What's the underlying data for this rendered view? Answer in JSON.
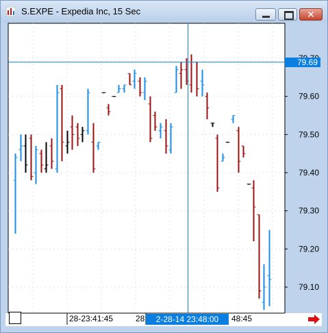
{
  "window": {
    "title": "S.EXPE - Expedia Inc, 15 Sec",
    "app_icon": "bar-chart-icon",
    "buttons": {
      "minimize": "minimize-icon",
      "maximize": "maximize-icon",
      "close": "close-icon"
    },
    "close_glyph": "✕"
  },
  "chart_data": {
    "type": "ohlc",
    "title": "S.EXPE - Expedia Inc, 15 Sec",
    "y_ticks": [
      "79.70",
      "79.60",
      "79.50",
      "79.40",
      "79.30",
      "79.20",
      "79.10"
    ],
    "ylim": [
      79.03,
      79.77
    ],
    "crosshair": {
      "price_label": "79.69",
      "time_label": "2-28-14  23:48:00",
      "price": 79.69
    },
    "x_labels": [
      "28-23:41:45",
      "28",
      "48:45"
    ],
    "colors": {
      "up": "#1a8ee8",
      "down": "#9b1010",
      "flat": "#000000"
    },
    "bars": [
      {
        "open": 79.38,
        "high": 79.45,
        "low": 79.24,
        "close": 79.44,
        "dir": "up"
      },
      {
        "open": 79.46,
        "high": 79.5,
        "low": 79.43,
        "close": 79.47,
        "dir": "up"
      },
      {
        "open": 79.47,
        "high": 79.5,
        "low": 79.4,
        "close": 79.42,
        "dir": "flat"
      },
      {
        "open": 79.49,
        "high": 79.5,
        "low": 79.38,
        "close": 79.39,
        "dir": "down"
      },
      {
        "open": 79.4,
        "high": 79.47,
        "low": 79.37,
        "close": 79.46,
        "dir": "up"
      },
      {
        "open": 79.45,
        "high": 79.46,
        "low": 79.4,
        "close": 79.42,
        "dir": "down"
      },
      {
        "open": 79.41,
        "high": 79.48,
        "low": 79.4,
        "close": 79.42,
        "dir": "flat"
      },
      {
        "open": 79.47,
        "high": 79.49,
        "low": 79.41,
        "close": 79.43,
        "dir": "down"
      },
      {
        "open": 79.41,
        "high": 79.63,
        "low": 79.4,
        "close": 79.61,
        "dir": "up"
      },
      {
        "open": 79.62,
        "high": 79.63,
        "low": 79.43,
        "close": 79.48,
        "dir": "down"
      },
      {
        "open": 79.47,
        "high": 79.51,
        "low": 79.45,
        "close": 79.48,
        "dir": "flat"
      },
      {
        "open": 79.52,
        "high": 79.55,
        "low": 79.46,
        "close": 79.5,
        "dir": "down"
      },
      {
        "open": 79.52,
        "high": 79.53,
        "low": 79.47,
        "close": 79.49,
        "dir": "down"
      },
      {
        "open": 79.5,
        "high": 79.52,
        "low": 79.48,
        "close": 79.51,
        "dir": "flat"
      },
      {
        "open": 79.51,
        "high": 79.62,
        "low": 79.5,
        "close": 79.61,
        "dir": "up"
      },
      {
        "open": 79.48,
        "high": 79.53,
        "low": 79.4,
        "close": 79.41,
        "dir": "down"
      },
      {
        "open": 79.47,
        "high": 79.48,
        "low": 79.46,
        "close": 79.48,
        "dir": "up"
      },
      {
        "open": 79.61,
        "high": 79.61,
        "low": 79.61,
        "close": 79.61,
        "dir": "flat"
      },
      {
        "open": 79.57,
        "high": 79.58,
        "low": 79.55,
        "close": 79.56,
        "dir": "down"
      },
      {
        "open": 79.6,
        "high": 79.6,
        "low": 79.6,
        "close": 79.6,
        "dir": "flat"
      },
      {
        "open": 79.61,
        "high": 79.63,
        "low": 79.61,
        "close": 79.62,
        "dir": "up"
      },
      {
        "open": 79.62,
        "high": 79.63,
        "low": 79.61,
        "close": 79.63,
        "dir": "up"
      },
      {
        "open": 79.66,
        "high": 79.66,
        "low": 79.63,
        "close": 79.63,
        "dir": "down"
      },
      {
        "open": 79.64,
        "high": 79.67,
        "low": 79.62,
        "close": 79.66,
        "dir": "up"
      },
      {
        "open": 79.64,
        "high": 79.65,
        "low": 79.6,
        "close": 79.61,
        "dir": "down"
      },
      {
        "open": 79.61,
        "high": 79.65,
        "low": 79.59,
        "close": 79.64,
        "dir": "up"
      },
      {
        "open": 79.58,
        "high": 79.6,
        "low": 79.48,
        "close": 79.49,
        "dir": "down"
      },
      {
        "open": 79.55,
        "high": 79.56,
        "low": 79.51,
        "close": 79.52,
        "dir": "down"
      },
      {
        "open": 79.51,
        "high": 79.53,
        "low": 79.49,
        "close": 79.52,
        "dir": "up"
      },
      {
        "open": 79.51,
        "high": 79.54,
        "low": 79.45,
        "close": 79.47,
        "dir": "down"
      },
      {
        "open": 79.46,
        "high": 79.53,
        "low": 79.45,
        "close": 79.52,
        "dir": "up"
      },
      {
        "open": 79.61,
        "high": 79.68,
        "low": 79.61,
        "close": 79.67,
        "dir": "up"
      },
      {
        "open": 79.66,
        "high": 79.69,
        "low": 79.62,
        "close": 79.67,
        "dir": "down"
      },
      {
        "open": 79.67,
        "high": 79.7,
        "low": 79.63,
        "close": 79.64,
        "dir": "down"
      },
      {
        "open": 79.63,
        "high": 79.71,
        "low": 79.61,
        "close": 79.69,
        "dir": "down"
      },
      {
        "open": 79.69,
        "high": 79.69,
        "low": 79.6,
        "close": 79.62,
        "dir": "down"
      },
      {
        "open": 79.64,
        "high": 79.67,
        "low": 79.6,
        "close": 79.63,
        "dir": "up"
      },
      {
        "open": 79.6,
        "high": 79.61,
        "low": 79.54,
        "close": 79.57,
        "dir": "down"
      },
      {
        "open": 79.53,
        "high": 79.53,
        "low": 79.52,
        "close": 79.53,
        "dir": "flat"
      },
      {
        "open": 79.49,
        "high": 79.5,
        "low": 79.35,
        "close": 79.36,
        "dir": "down"
      },
      {
        "open": 79.43,
        "high": 79.45,
        "low": 79.43,
        "close": 79.44,
        "dir": "up"
      },
      {
        "open": 79.48,
        "high": 79.48,
        "low": 79.48,
        "close": 79.48,
        "dir": "flat"
      },
      {
        "open": 79.54,
        "high": 79.55,
        "low": 79.53,
        "close": 79.55,
        "dir": "up"
      },
      {
        "open": 79.51,
        "high": 79.52,
        "low": 79.4,
        "close": 79.43,
        "dir": "down"
      },
      {
        "open": 79.47,
        "high": 79.47,
        "low": 79.44,
        "close": 79.45,
        "dir": "down"
      },
      {
        "open": 79.37,
        "high": 79.37,
        "low": 79.37,
        "close": 79.37,
        "dir": "flat"
      },
      {
        "open": 79.36,
        "high": 79.38,
        "low": 79.22,
        "close": 79.31,
        "dir": "down"
      },
      {
        "open": 79.29,
        "high": 79.29,
        "low": 79.07,
        "close": 79.09,
        "dir": "down"
      },
      {
        "open": 79.06,
        "high": 79.16,
        "low": 79.04,
        "close": 79.1,
        "dir": "up"
      },
      {
        "open": 79.13,
        "high": 79.25,
        "low": 79.05,
        "close": 79.12,
        "dir": "up"
      }
    ]
  },
  "scroll": {
    "arrow_icon": "scroll-right-arrow-icon"
  }
}
